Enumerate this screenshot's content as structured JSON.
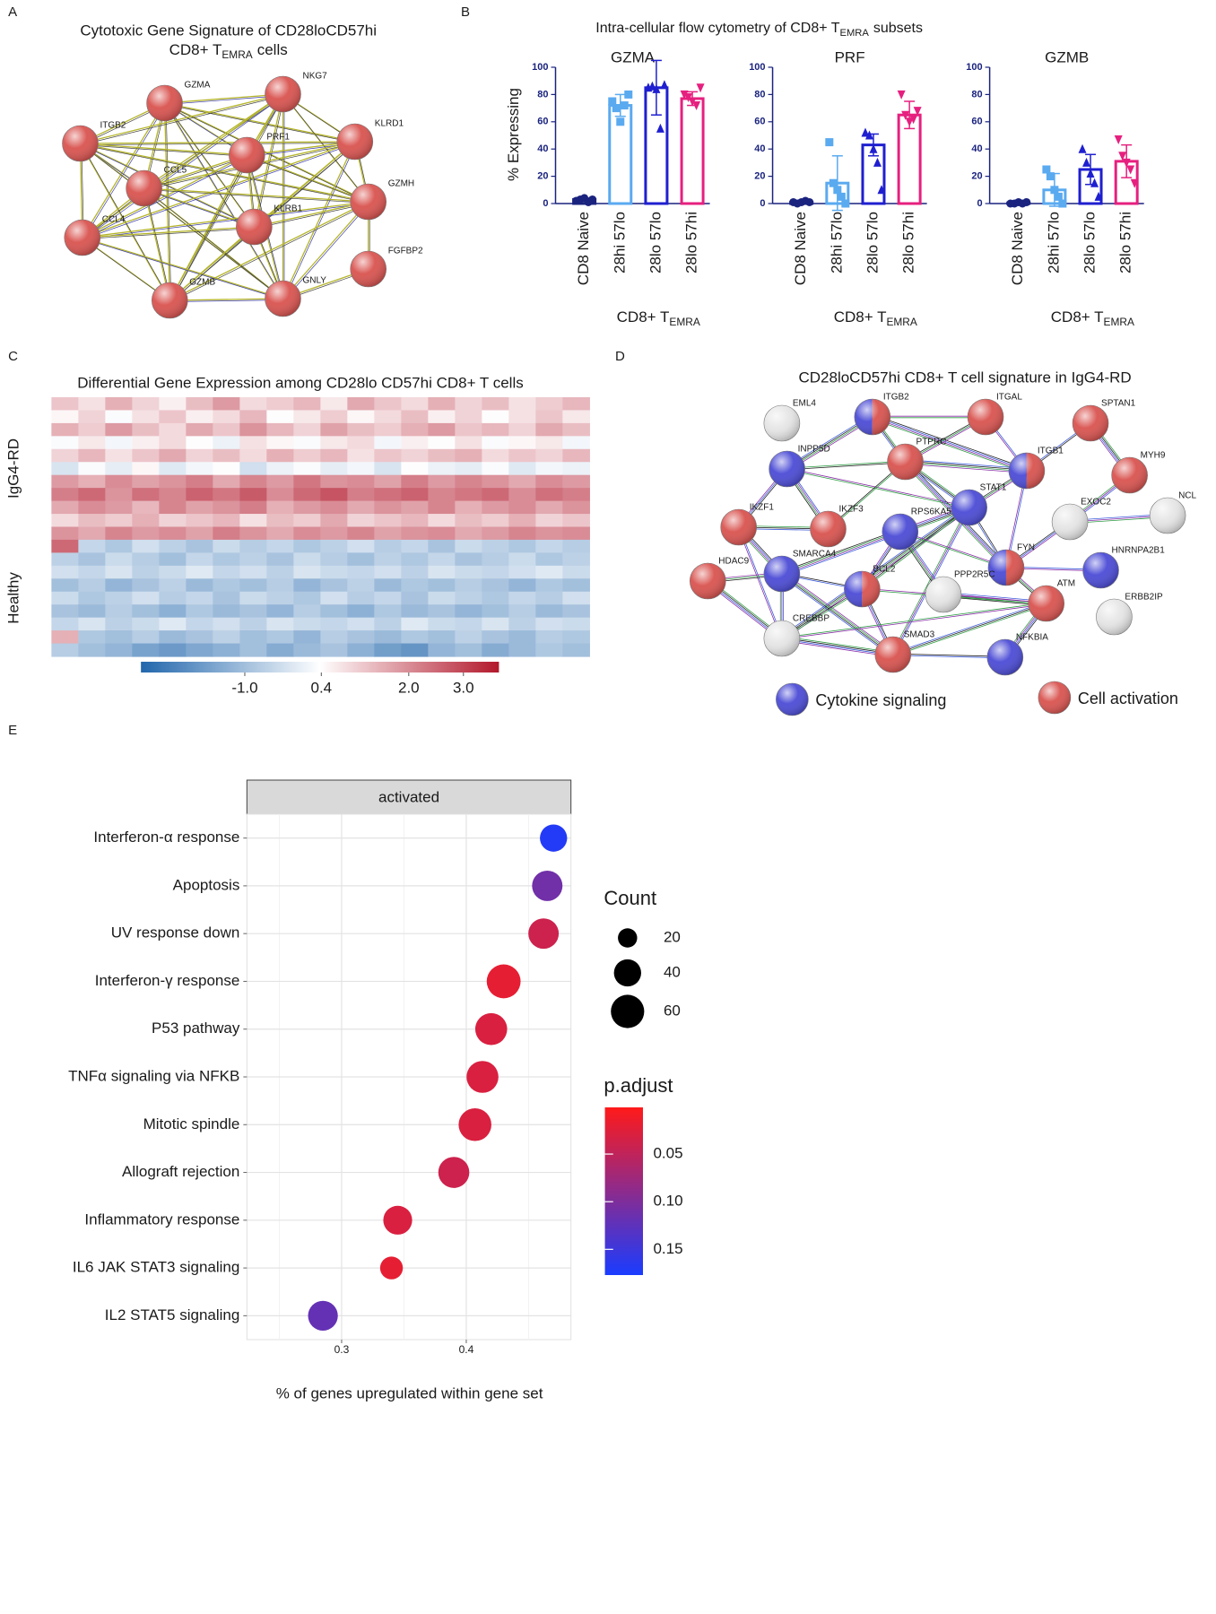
{
  "panel_labels": [
    "A",
    "B",
    "C",
    "D",
    "E"
  ],
  "networks": [
    {
      "title": "Cytotoxic Gene Signature of CD28loCD57hi",
      "title2": "CD8+ T",
      "title2_sub": "EMRA",
      "title2_end": "cells",
      "node_color": "#d9534f",
      "nodes": [
        "GZMA",
        "NKG7",
        "ITGB2",
        "KLRD1",
        "PRF1",
        "CCL5",
        "GZMH",
        "CCL4",
        "KLRB1",
        "FGFBP2",
        "GZMB",
        "GNLY"
      ]
    },
    {
      "title": "CD28loCD57hi CD8+ T cell signature in IgG4-RD",
      "nodes": [
        {
          "label": "EML4",
          "colors": [
            "#e6e6e6"
          ]
        },
        {
          "label": "ITGB2",
          "colors": [
            "#4b4bd6",
            "#d9534f"
          ]
        },
        {
          "label": "ITGAL",
          "colors": [
            "#d9534f"
          ]
        },
        {
          "label": "SPTAN1",
          "colors": [
            "#d9534f"
          ]
        },
        {
          "label": "INPP5D",
          "colors": [
            "#4b4bd6"
          ]
        },
        {
          "label": "PTPRC",
          "colors": [
            "#d9534f"
          ]
        },
        {
          "label": "ITGB1",
          "colors": [
            "#4b4bd6",
            "#d9534f"
          ]
        },
        {
          "label": "MYH9",
          "colors": [
            "#d9534f"
          ]
        },
        {
          "label": "STAT1",
          "colors": [
            "#4b4bd6"
          ]
        },
        {
          "label": "NCL",
          "colors": [
            "#e6e6e6"
          ]
        },
        {
          "label": "EXOC2",
          "colors": [
            "#e6e6e6"
          ]
        },
        {
          "label": "IKZF1",
          "colors": [
            "#d9534f"
          ]
        },
        {
          "label": "IKZF3",
          "colors": [
            "#d9534f"
          ]
        },
        {
          "label": "RPS6KA5",
          "colors": [
            "#4b4bd6"
          ]
        },
        {
          "label": "FYN",
          "colors": [
            "#4b4bd6",
            "#d9534f"
          ]
        },
        {
          "label": "HNRNPA2B1",
          "colors": [
            "#4b4bd6"
          ]
        },
        {
          "label": "HDAC9",
          "colors": [
            "#d9534f"
          ]
        },
        {
          "label": "SMARCA4",
          "colors": [
            "#4b4bd6"
          ]
        },
        {
          "label": "BCL2",
          "colors": [
            "#4b4bd6",
            "#d9534f"
          ]
        },
        {
          "label": "PPP2R5C",
          "colors": [
            "#e6e6e6"
          ]
        },
        {
          "label": "ATM",
          "colors": [
            "#d9534f"
          ]
        },
        {
          "label": "ERBB2IP",
          "colors": [
            "#e6e6e6"
          ]
        },
        {
          "label": "CREBBP",
          "colors": [
            "#e6e6e6"
          ]
        },
        {
          "label": "SMAD3",
          "colors": [
            "#d9534f"
          ]
        },
        {
          "label": "NFKBIA",
          "colors": [
            "#4b4bd6"
          ]
        }
      ],
      "legend": [
        {
          "label": "Cytokine signaling",
          "color": "#4b4bd6"
        },
        {
          "label": "Cell activation",
          "color": "#d9534f"
        }
      ]
    }
  ],
  "panel_b": {
    "title": "Intra-cellular flow cytometry of CD8+ T",
    "title_sub": "EMRA",
    "title_end": "subsets"
  },
  "chart_data": [
    {
      "type": "bar",
      "title": "GZMA",
      "ylabel": "% Expressing",
      "xlabel": "CD8+ T",
      "xlabel_sub": "EMRA",
      "categories": [
        "CD8 Naive",
        "28hi 57lo",
        "28lo 57lo",
        "28lo 57hi"
      ],
      "values": [
        3,
        72,
        85,
        77
      ],
      "errors": [
        1,
        8,
        20,
        5
      ],
      "points": [
        [
          2,
          3,
          4,
          1,
          3
        ],
        [
          75,
          70,
          60,
          72,
          80
        ],
        [
          85,
          86,
          84,
          55,
          87
        ],
        [
          80,
          78,
          75,
          72,
          85
        ]
      ],
      "colors": [
        "#1a237e",
        "#5aaaf0",
        "#1f1fd0",
        "#e6207f"
      ],
      "markers": [
        "circle",
        "square",
        "triangle-up",
        "triangle-down"
      ],
      "ylim": [
        0,
        100
      ],
      "yticks": [
        0,
        20,
        40,
        60,
        80,
        100
      ]
    },
    {
      "type": "bar",
      "title": "PRF",
      "xlabel": "CD8+ T",
      "xlabel_sub": "EMRA",
      "categories": [
        "CD8 Naive",
        "28hi 57lo",
        "28lo 57lo",
        "28lo 57hi"
      ],
      "values": [
        1,
        15,
        43,
        65
      ],
      "errors": [
        1,
        20,
        8,
        10
      ],
      "points": [
        [
          1,
          0,
          1,
          2,
          1
        ],
        [
          45,
          15,
          10,
          5,
          0
        ],
        [
          52,
          50,
          40,
          30,
          10
        ],
        [
          80,
          65,
          60,
          62,
          68
        ]
      ],
      "colors": [
        "#1a237e",
        "#5aaaf0",
        "#1f1fd0",
        "#e6207f"
      ],
      "markers": [
        "circle",
        "square",
        "triangle-up",
        "triangle-down"
      ],
      "ylim": [
        0,
        100
      ],
      "yticks": [
        0,
        20,
        40,
        60,
        80,
        100
      ]
    },
    {
      "type": "bar",
      "title": "GZMB",
      "xlabel": "CD8+ T",
      "xlabel_sub": "EMRA",
      "categories": [
        "CD8 Naive",
        "28hi 57lo",
        "28lo 57lo",
        "28lo 57hi"
      ],
      "values": [
        0.5,
        10,
        25,
        31
      ],
      "errors": [
        0.5,
        12,
        11,
        12
      ],
      "points": [
        [
          0,
          0,
          1,
          0,
          1
        ],
        [
          25,
          20,
          10,
          5,
          0
        ],
        [
          40,
          30,
          22,
          15,
          5
        ],
        [
          47,
          35,
          30,
          25,
          15
        ]
      ],
      "colors": [
        "#1a237e",
        "#5aaaf0",
        "#1f1fd0",
        "#e6207f"
      ],
      "markers": [
        "circle",
        "square",
        "triangle-up",
        "triangle-down"
      ],
      "ylim": [
        0,
        100
      ],
      "yticks": [
        0,
        20,
        40,
        60,
        80,
        100
      ]
    },
    {
      "type": "heatmap",
      "title": "Differential Gene Expression among CD28lo CD57hi CD8+ T cells",
      "clim": [
        -2.9,
        3.65
      ],
      "colors": [
        "#2166ac",
        "#ffffff",
        "#b2182b"
      ],
      "cticks": [
        {
          "value": -1,
          "label": "-1.0"
        },
        0.4,
        {
          "value": 2,
          "label": "2.0"
        },
        {
          "value": 3,
          "label": "3.0"
        }
      ],
      "groups": [
        {
          "name": "IgG4-RD",
          "values": [
            [
              1.2,
              0.8,
              1.5,
              1.0,
              0.6,
              1.3,
              1.8,
              0.9,
              1.1,
              1.4,
              0.7,
              1.6,
              1.2,
              0.9,
              1.5,
              1.0,
              1.3,
              0.8,
              1.1,
              1.4
            ],
            [
              0.5,
              1.0,
              0.3,
              0.8,
              1.2,
              0.6,
              0.9,
              1.4,
              0.4,
              0.7,
              1.1,
              0.5,
              0.9,
              1.3,
              0.6,
              1.0,
              0.4,
              0.8,
              1.2,
              0.7
            ],
            [
              1.5,
              1.1,
              1.8,
              1.3,
              0.9,
              1.6,
              1.2,
              1.9,
              1.4,
              1.0,
              1.7,
              1.3,
              1.1,
              1.5,
              1.8,
              1.2,
              1.4,
              1.0,
              1.6,
              1.3
            ],
            [
              0.3,
              0.7,
              0.2,
              0.6,
              0.9,
              0.4,
              0.1,
              0.8,
              0.5,
              0.3,
              0.7,
              0.9,
              0.2,
              0.6,
              0.4,
              0.8,
              0.3,
              0.5,
              0.7,
              0.2
            ],
            [
              1.0,
              1.4,
              0.8,
              1.2,
              1.6,
              1.0,
              1.3,
              0.9,
              1.5,
              1.1,
              1.4,
              0.8,
              1.2,
              1.0,
              1.3,
              1.5,
              0.9,
              1.2,
              1.0,
              1.4
            ],
            [
              -0.2,
              0.3,
              0.0,
              0.5,
              -0.1,
              0.2,
              0.4,
              -0.3,
              0.1,
              0.3,
              0.0,
              0.2,
              -0.2,
              0.4,
              0.1,
              0.0,
              0.3,
              -0.1,
              0.2,
              0.1
            ],
            [
              1.8,
              1.5,
              2.0,
              1.7,
              1.9,
              2.2,
              1.6,
              2.1,
              1.8,
              2.3,
              1.9,
              2.0,
              1.7,
              2.2,
              1.8,
              2.1,
              1.9,
              1.6,
              2.0,
              1.8
            ],
            [
              2.2,
              2.5,
              1.9,
              2.4,
              2.1,
              2.6,
              2.3,
              2.7,
              2.0,
              2.5,
              2.8,
              2.2,
              2.4,
              2.6,
              2.1,
              2.3,
              2.5,
              2.0,
              2.4,
              2.2
            ],
            [
              1.6,
              2.0,
              1.8,
              1.4,
              2.1,
              1.7,
              1.9,
              2.2,
              1.5,
              1.8,
              2.0,
              1.6,
              1.9,
              1.7,
              2.1,
              1.5,
              1.8,
              2.0,
              1.6,
              1.9
            ],
            [
              0.9,
              1.3,
              1.1,
              1.5,
              1.0,
              1.2,
              1.4,
              0.8,
              1.3,
              1.1,
              1.6,
              1.0,
              1.2,
              1.4,
              0.9,
              1.3,
              1.1,
              1.5,
              1.0,
              1.2
            ],
            [
              1.9,
              1.6,
              2.1,
              1.8,
              2.0,
              1.7,
              2.2,
              1.9,
              1.6,
              2.0,
              1.8,
              2.1,
              1.7,
              1.9,
              2.0,
              1.6,
              1.8,
              2.1,
              1.9,
              2.0
            ]
          ]
        },
        {
          "name": "Healthy",
          "values": [
            [
              2.5,
              -0.5,
              -0.8,
              -0.3,
              -0.6,
              -0.9,
              -0.4,
              -0.7,
              -0.5,
              -0.8,
              -0.6,
              -0.3,
              -0.7,
              -0.5,
              -0.9,
              -0.4,
              -0.6,
              -0.8,
              -0.5,
              -0.7
            ],
            [
              -0.6,
              -0.9,
              -0.4,
              -0.7,
              -1.0,
              -0.5,
              -0.8,
              -0.6,
              -0.9,
              -0.4,
              -0.7,
              -1.0,
              -0.6,
              -0.8,
              -0.5,
              -0.9,
              -0.7,
              -0.4,
              -0.8,
              -0.6
            ],
            [
              -0.3,
              -0.5,
              -0.2,
              -0.6,
              -0.4,
              -0.1,
              -0.5,
              -0.3,
              -0.6,
              -0.2,
              -0.4,
              -0.5,
              -0.3,
              -0.6,
              -0.2,
              -0.4,
              -0.5,
              -0.3,
              -0.1,
              -0.4
            ],
            [
              -1.0,
              -0.7,
              -1.2,
              -0.9,
              -0.6,
              -1.1,
              -0.8,
              -1.0,
              -0.7,
              -1.2,
              -0.9,
              -0.6,
              -1.1,
              -0.8,
              -1.0,
              -0.7,
              -0.9,
              -1.2,
              -0.8,
              -1.0
            ],
            [
              -0.4,
              -0.8,
              -0.6,
              -0.3,
              -0.7,
              -0.5,
              -0.9,
              -0.4,
              -0.6,
              -0.8,
              -0.3,
              -0.7,
              -0.5,
              -0.9,
              -0.4,
              -0.6,
              -0.8,
              -0.5,
              -0.7,
              -0.3
            ],
            [
              -0.9,
              -1.1,
              -0.7,
              -1.0,
              -1.3,
              -0.8,
              -1.1,
              -0.9,
              -1.2,
              -0.7,
              -1.0,
              -1.3,
              -0.8,
              -1.1,
              -0.9,
              -1.2,
              -1.0,
              -0.7,
              -1.1,
              -0.9
            ],
            [
              -0.5,
              -0.2,
              -0.6,
              -0.4,
              -0.1,
              -0.5,
              -0.3,
              -0.6,
              -0.2,
              -0.4,
              -0.5,
              -0.3,
              -0.6,
              -0.1,
              -0.4,
              -0.5,
              -0.2,
              -0.6,
              -0.3,
              -0.4
            ],
            [
              1.5,
              -0.8,
              -1.0,
              -0.7,
              -1.1,
              -0.9,
              -0.6,
              -1.0,
              -0.8,
              -1.2,
              -0.7,
              -0.9,
              -1.1,
              -0.8,
              -1.0,
              -0.6,
              -0.9,
              -1.1,
              -0.7,
              -0.8
            ],
            [
              -0.7,
              -1.0,
              -1.2,
              -1.6,
              -1.8,
              -1.5,
              -1.3,
              -1.0,
              -1.4,
              -1.1,
              -0.9,
              -1.3,
              -1.7,
              -1.9,
              -1.2,
              -1.0,
              -1.4,
              -1.1,
              -0.8,
              -1.0
            ]
          ]
        }
      ]
    },
    {
      "type": "dot",
      "facet": "activated",
      "categories": [
        "Interferon-α response",
        "Apoptosis",
        "UV response down",
        "Interferon-γ response",
        "P53 pathway",
        "TNFα signaling via NFKB",
        "Mitotic spindle",
        "Allograft rejection",
        "Inflammatory response",
        "IL6 JAK STAT3 signaling",
        "IL2 STAT5 signaling"
      ],
      "values": [
        0.47,
        0.465,
        0.462,
        0.43,
        0.42,
        0.413,
        0.407,
        0.39,
        0.345,
        0.34,
        0.285
      ],
      "counts": [
        40,
        50,
        50,
        62,
        55,
        55,
        58,
        52,
        45,
        28,
        48
      ],
      "p_adjust": [
        0.17,
        0.11,
        0.04,
        0.02,
        0.03,
        0.03,
        0.03,
        0.04,
        0.03,
        0.02,
        0.12
      ],
      "xlim": [
        0.224,
        0.484
      ],
      "xticks": [
        0.3,
        0.4
      ],
      "xticks_minor": [
        0.25,
        0.35,
        0.45
      ],
      "grid": true,
      "xlabel": "% of genes upregulated within gene set",
      "size_title": "Count",
      "size_ticks": [
        20,
        40,
        60
      ],
      "color_title": "p.adjust",
      "clim": [
        0.001,
        0.177
      ],
      "colors": [
        "#ff1a1a",
        "#1a3cff"
      ],
      "cticks": [
        0.05,
        {
          "value": 0.1,
          "label": "0.10"
        },
        0.15
      ]
    }
  ]
}
